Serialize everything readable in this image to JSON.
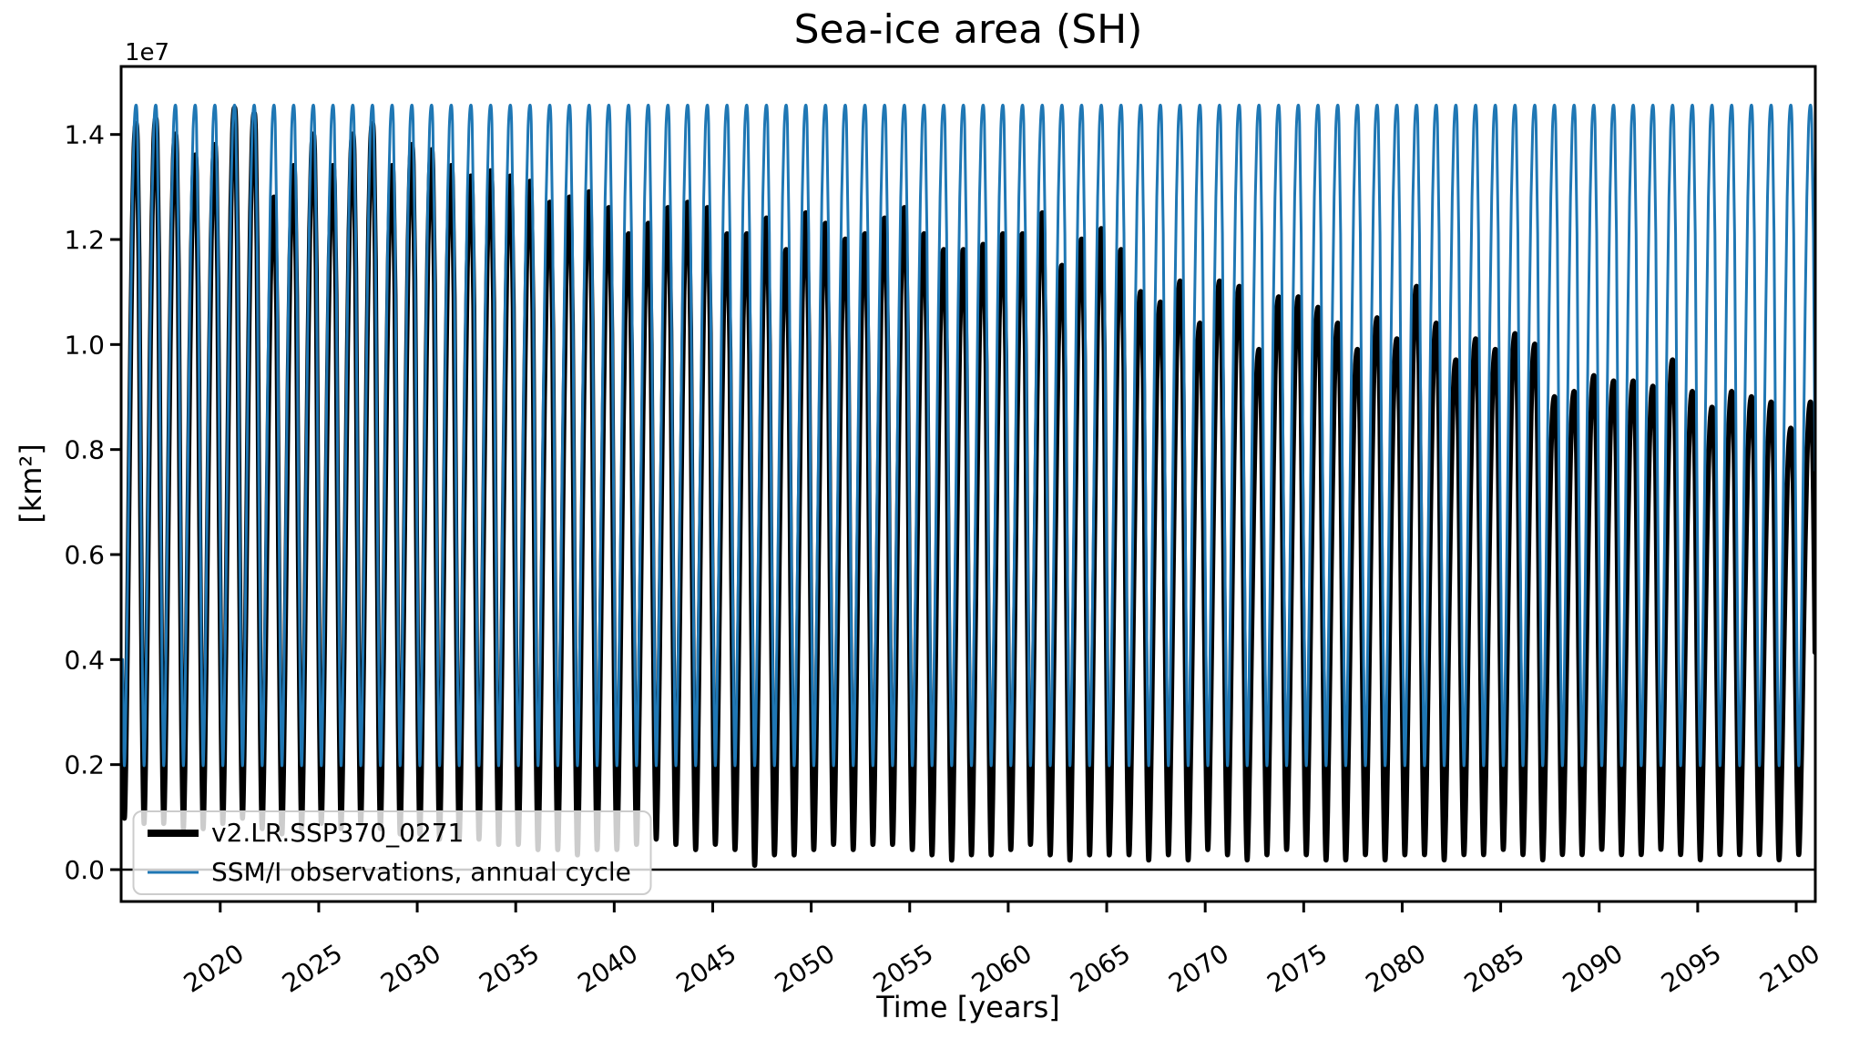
{
  "chart_data": {
    "type": "line",
    "title": "Sea-ice area (SH)",
    "xlabel": "Time [years]",
    "ylabel": "[km²]",
    "y_offset_label": "1e7",
    "grid": false,
    "legend_position": "lower left",
    "x_axis": {
      "min": 2014.97,
      "max": 2100.97,
      "ticks": [
        2020,
        2025,
        2030,
        2035,
        2040,
        2045,
        2050,
        2055,
        2060,
        2065,
        2070,
        2075,
        2080,
        2085,
        2090,
        2095,
        2100
      ]
    },
    "y_axis": {
      "min_e7": -0.0607,
      "max_e7": 1.5295,
      "tick_labels": [
        "0.0",
        "0.2",
        "0.4",
        "0.6",
        "0.8",
        "1.0",
        "1.2",
        "1.4"
      ],
      "tick_values_e7": [
        0.0,
        0.2,
        0.4,
        0.6,
        0.8,
        1.0,
        1.2,
        1.4
      ]
    },
    "zero_line_e7": 0.0,
    "series": [
      {
        "name": "v2.LR.SSP370_0271",
        "color": "#000000",
        "linewidth": 5.5,
        "kind": "monthly_envelope",
        "start_year": 2015,
        "end_year": 2100,
        "annual_max_e7": [
          1.42,
          1.43,
          1.4,
          1.36,
          1.38,
          1.45,
          1.44,
          1.28,
          1.34,
          1.4,
          1.34,
          1.4,
          1.42,
          1.34,
          1.38,
          1.37,
          1.34,
          1.32,
          1.33,
          1.32,
          1.31,
          1.27,
          1.28,
          1.29,
          1.26,
          1.21,
          1.23,
          1.26,
          1.27,
          1.26,
          1.21,
          1.21,
          1.24,
          1.18,
          1.25,
          1.23,
          1.2,
          1.21,
          1.24,
          1.26,
          1.21,
          1.18,
          1.18,
          1.19,
          1.21,
          1.21,
          1.25,
          1.15,
          1.2,
          1.22,
          1.18,
          1.1,
          1.08,
          1.12,
          1.04,
          1.12,
          1.11,
          0.99,
          1.09,
          1.09,
          1.07,
          1.04,
          0.99,
          1.05,
          1.01,
          1.11,
          1.04,
          0.97,
          1.01,
          0.99,
          1.02,
          1.0,
          0.9,
          0.91,
          0.94,
          0.93,
          0.93,
          0.92,
          0.97,
          0.91,
          0.88,
          0.91,
          0.9,
          0.89,
          0.84,
          0.89
        ],
        "annual_min_e7": [
          0.1,
          0.09,
          0.09,
          0.08,
          0.08,
          0.09,
          0.1,
          0.08,
          0.07,
          0.08,
          0.09,
          0.08,
          0.09,
          0.08,
          0.07,
          0.07,
          0.06,
          0.06,
          0.06,
          0.05,
          0.05,
          0.04,
          0.04,
          0.03,
          0.04,
          0.04,
          0.05,
          0.06,
          0.05,
          0.04,
          0.05,
          0.04,
          0.01,
          0.03,
          0.03,
          0.04,
          0.05,
          0.04,
          0.05,
          0.05,
          0.04,
          0.03,
          0.02,
          0.03,
          0.03,
          0.04,
          0.05,
          0.03,
          0.02,
          0.03,
          0.03,
          0.03,
          0.02,
          0.03,
          0.02,
          0.04,
          0.03,
          0.02,
          0.03,
          0.04,
          0.03,
          0.02,
          0.02,
          0.03,
          0.02,
          0.03,
          0.03,
          0.02,
          0.03,
          0.03,
          0.04,
          0.03,
          0.02,
          0.03,
          0.03,
          0.04,
          0.03,
          0.03,
          0.04,
          0.03,
          0.02,
          0.03,
          0.03,
          0.03,
          0.02,
          0.03
        ]
      },
      {
        "name": "SSM/I observations, annual cycle",
        "color": "#1f77b4",
        "linewidth": 3,
        "kind": "repeating_annual_cycle",
        "start_year": 2015,
        "end_year": 2100,
        "monthly_cycle_e7": [
          0.4,
          0.2,
          0.31,
          0.54,
          0.81,
          1.07,
          1.28,
          1.41,
          1.455,
          1.42,
          1.21,
          0.76
        ]
      }
    ]
  },
  "legend": {
    "entries": [
      {
        "label": "v2.LR.SSP370_0271",
        "color": "#000000"
      },
      {
        "label": "SSM/I observations, annual cycle",
        "color": "#1f77b4"
      }
    ]
  },
  "colors": {
    "model_line": "#000000",
    "obs_line": "#1f77b4",
    "spine": "#000000",
    "legend_border": "#cccccc",
    "legend_bg_alpha": 0.8
  }
}
